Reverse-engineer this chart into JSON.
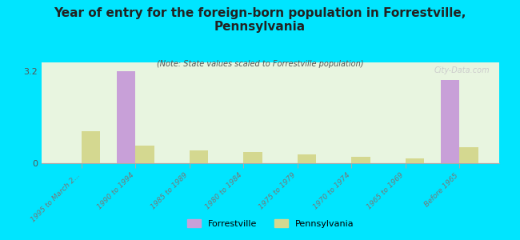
{
  "title": "Year of entry for the foreign-born population in Forrestville,\nPennsylvania",
  "subtitle": "(Note: State values scaled to Forrestville population)",
  "categories": [
    "1995 to March 2...",
    "1990 to 1994",
    "1985 to 1989",
    "1980 to 1984",
    "1975 to 1979",
    "1970 to 1974",
    "1965 to 1969",
    "Before 1965"
  ],
  "forrestville_values": [
    0,
    3.2,
    0,
    0,
    0,
    0,
    0,
    2.9
  ],
  "pennsylvania_values": [
    1.1,
    0.6,
    0.45,
    0.38,
    0.3,
    0.22,
    0.18,
    0.55
  ],
  "forrestville_color": "#c8a0d8",
  "pennsylvania_color": "#d4d890",
  "background_color": "#00e5ff",
  "plot_bg_start": "#e8f5e0",
  "plot_bg_end": "#fffff0",
  "ylim": [
    0,
    3.5
  ],
  "yticks": [
    0,
    3.2
  ],
  "bar_width": 0.35,
  "watermark": "City-Data.com",
  "legend_forrestville": "Forrestville",
  "legend_pennsylvania": "Pennsylvania"
}
